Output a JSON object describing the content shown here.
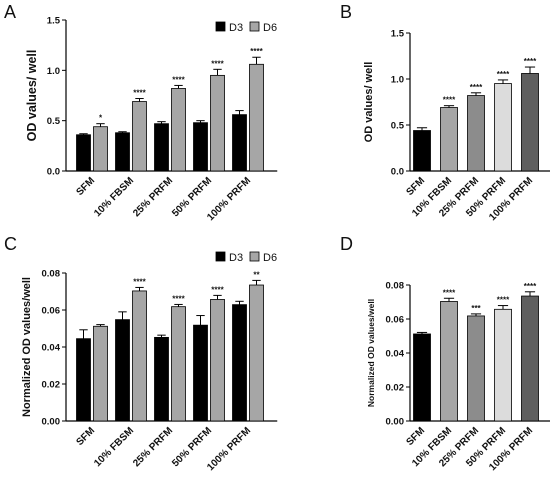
{
  "panels": {
    "A": {
      "label": "A"
    },
    "B": {
      "label": "B"
    },
    "C": {
      "label": "C"
    },
    "D": {
      "label": "D"
    }
  },
  "chart_data": [
    {
      "id": "A",
      "type": "bar",
      "ylabel": "OD values/ well",
      "ylim": [
        0,
        1.5
      ],
      "yticks": [
        "0.0",
        "0.5",
        "1.0",
        "1.5"
      ],
      "categories": [
        "SFM",
        "10% FBSM",
        "25% PRFM",
        "50% PRFM",
        "100% PRFM"
      ],
      "legend": [
        "D3",
        "D6"
      ],
      "legend_position": "top-right",
      "series": [
        {
          "name": "D3",
          "color": "#000000",
          "values": [
            0.36,
            0.38,
            0.47,
            0.48,
            0.56
          ],
          "errors": [
            0.01,
            0.01,
            0.02,
            0.02,
            0.04
          ]
        },
        {
          "name": "D6",
          "color": "#a6a6a6",
          "values": [
            0.44,
            0.69,
            0.82,
            0.95,
            1.06
          ],
          "errors": [
            0.03,
            0.03,
            0.03,
            0.06,
            0.07
          ]
        }
      ],
      "significance": [
        "*",
        "****",
        "****",
        "****",
        "****"
      ]
    },
    {
      "id": "B",
      "type": "bar",
      "ylabel": "OD values/ well",
      "ylim": [
        0,
        1.5
      ],
      "yticks": [
        "0.0",
        "0.5",
        "1.0",
        "1.5"
      ],
      "categories": [
        "SFM",
        "10% FBSM",
        "25% PRFM",
        "50% PRFM",
        "100% PRFM"
      ],
      "colors": [
        "#000000",
        "#a6a6a6",
        "#8c8c8c",
        "#dcdcdc",
        "#5f5f5f"
      ],
      "values": [
        0.44,
        0.69,
        0.82,
        0.95,
        1.06
      ],
      "errors": [
        0.03,
        0.02,
        0.03,
        0.04,
        0.07
      ],
      "significance": [
        "",
        "****",
        "****",
        "****",
        "****"
      ]
    },
    {
      "id": "C",
      "type": "bar",
      "ylabel": "Normalized OD values/well",
      "ylim": [
        0,
        0.08
      ],
      "yticks": [
        "0.00",
        "0.02",
        "0.04",
        "0.06",
        "0.08"
      ],
      "categories": [
        "SFM",
        "10% FBSM",
        "25% PRFM",
        "50% PRFM",
        "100% PRFM"
      ],
      "legend": [
        "D3",
        "D6"
      ],
      "legend_position": "top-right",
      "series": [
        {
          "name": "D3",
          "color": "#000000",
          "values": [
            0.0445,
            0.0548,
            0.0452,
            0.0518,
            0.0629
          ],
          "errors": [
            0.0048,
            0.0042,
            0.0012,
            0.0052,
            0.0018
          ]
        },
        {
          "name": "D6",
          "color": "#a6a6a6",
          "values": [
            0.0512,
            0.0703,
            0.0618,
            0.0657,
            0.0735
          ],
          "errors": [
            0.0009,
            0.0019,
            0.0012,
            0.0022,
            0.0025
          ]
        }
      ],
      "significance": [
        "",
        "****",
        "****",
        "****",
        "**"
      ]
    },
    {
      "id": "D",
      "type": "bar",
      "ylabel": "Normalized OD values/well",
      "ylim": [
        0,
        0.08
      ],
      "yticks": [
        "0.00",
        "0.02",
        "0.04",
        "0.06",
        "0.08"
      ],
      "categories": [
        "SFM",
        "10% FBSM",
        "25% PRFM",
        "50% PRFM",
        "100% PRFM"
      ],
      "colors": [
        "#000000",
        "#a6a6a6",
        "#8c8c8c",
        "#dcdcdc",
        "#5f5f5f"
      ],
      "values": [
        0.0512,
        0.0703,
        0.0618,
        0.0657,
        0.0735
      ],
      "errors": [
        0.0009,
        0.0019,
        0.0012,
        0.0022,
        0.0025
      ],
      "significance": [
        "",
        "****",
        "***",
        "****",
        "****"
      ]
    }
  ]
}
